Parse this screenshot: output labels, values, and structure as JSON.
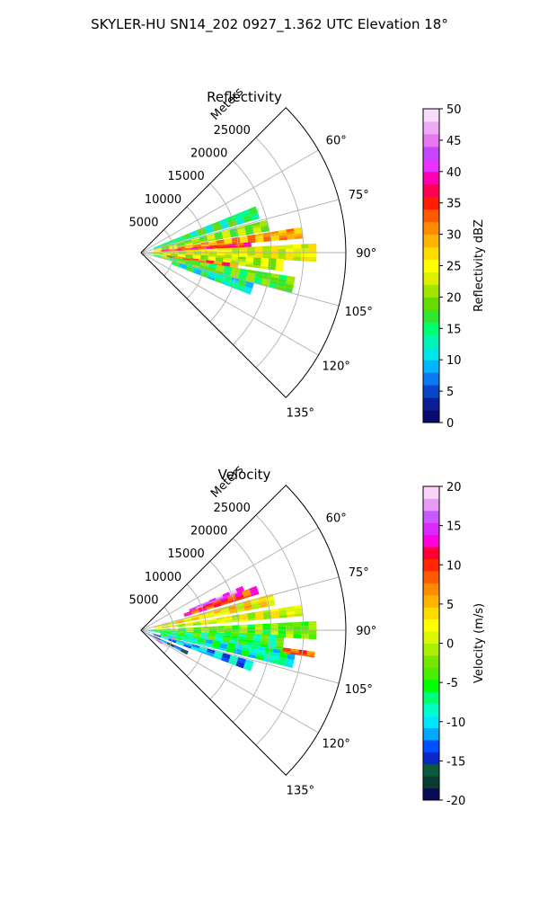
{
  "figure": {
    "suptitle": "SKYLER-HU  SN14_202  0927_1.362 UTC Elevation 18°"
  },
  "chart_data": [
    {
      "type": "heatmap",
      "projection": "polar-sector",
      "title": "Reflectivity",
      "radial_axis_label": "Meters",
      "radial_ticks": [
        "5000",
        "10000",
        "15000",
        "20000",
        "25000"
      ],
      "radial_tick_values": [
        5000,
        10000,
        15000,
        20000,
        25000
      ],
      "radial_max": 31500,
      "azimuth_range_deg": [
        45,
        135
      ],
      "azimuth_ticks": [
        "60°",
        "75°",
        "90°",
        "105°",
        "120°",
        "135°"
      ],
      "azimuth_tick_values": [
        60,
        75,
        90,
        105,
        120,
        135
      ],
      "grid": true,
      "colorbar": {
        "label": "Reflectivity dBZ",
        "min": 0,
        "max": 50,
        "ticks": [
          "0",
          "5",
          "10",
          "15",
          "20",
          "25",
          "30",
          "35",
          "40",
          "45",
          "50"
        ],
        "tick_values": [
          0,
          5,
          10,
          15,
          20,
          25,
          30,
          35,
          40,
          45,
          50
        ],
        "colors": [
          "#0a0a6e",
          "#0a1e96",
          "#0a46c8",
          "#0a78f0",
          "#00b4ff",
          "#00e6e6",
          "#00f5b4",
          "#00ff6e",
          "#32e632",
          "#64dc00",
          "#a0e600",
          "#dcf000",
          "#ffff00",
          "#ffdc00",
          "#ffb400",
          "#ff8c00",
          "#ff5a00",
          "#ff1e00",
          "#ff0050",
          "#ff00b4",
          "#e632ff",
          "#c846ff",
          "#e678f0",
          "#f0aaf5",
          "#fadcfa"
        ]
      },
      "echoes": [
        {
          "az": 71,
          "r0": 2000,
          "r1": 19000,
          "w": 6,
          "value": 15
        },
        {
          "az": 78,
          "r0": 2000,
          "r1": 20000,
          "w": 5,
          "value": 20
        },
        {
          "az": 83,
          "r0": 2000,
          "r1": 25000,
          "w": 4,
          "value": 30
        },
        {
          "az": 86,
          "r0": 3000,
          "r1": 17000,
          "w": 3,
          "value": 36
        },
        {
          "az": 90,
          "r0": 1000,
          "r1": 27000,
          "w": 6,
          "value": 24
        },
        {
          "az": 95,
          "r0": 1000,
          "r1": 22000,
          "w": 5,
          "value": 22
        },
        {
          "az": 98,
          "r0": 4000,
          "r1": 15000,
          "w": 3,
          "value": 33
        },
        {
          "az": 102,
          "r0": 2000,
          "r1": 24000,
          "w": 6,
          "value": 18
        },
        {
          "az": 108,
          "r0": 5000,
          "r1": 18000,
          "w": 6,
          "value": 13
        }
      ]
    },
    {
      "type": "heatmap",
      "projection": "polar-sector",
      "title": "Velocity",
      "radial_axis_label": "Meters",
      "radial_ticks": [
        "5000",
        "10000",
        "15000",
        "20000",
        "25000"
      ],
      "radial_tick_values": [
        5000,
        10000,
        15000,
        20000,
        25000
      ],
      "radial_max": 31500,
      "azimuth_range_deg": [
        45,
        135
      ],
      "azimuth_ticks": [
        "60°",
        "75°",
        "90°",
        "105°",
        "120°",
        "135°"
      ],
      "azimuth_tick_values": [
        60,
        75,
        90,
        105,
        120,
        135
      ],
      "grid": true,
      "colorbar": {
        "label": "Velocity (m/s)",
        "min": -20,
        "max": 20,
        "ticks": [
          "-20",
          "-15",
          "-10",
          "-5",
          "0",
          "5",
          "10",
          "15",
          "20"
        ],
        "tick_values": [
          -20,
          -15,
          -10,
          -5,
          0,
          5,
          10,
          15,
          20
        ],
        "colors": [
          "#0a0a5a",
          "#0a3c32",
          "#0a5a3c",
          "#0a28c8",
          "#0050ff",
          "#00aaff",
          "#00e6ff",
          "#00ffc8",
          "#00ff78",
          "#00ff00",
          "#46f000",
          "#78e600",
          "#aaf000",
          "#dcf500",
          "#ffff00",
          "#ffdc00",
          "#ffb400",
          "#ff8c00",
          "#ff5a00",
          "#ff2800",
          "#ff0032",
          "#ff00dc",
          "#dc28ff",
          "#c85aff",
          "#e69bf5",
          "#fad2fa"
        ]
      },
      "echoes": [
        {
          "az": 68,
          "r0": 8000,
          "r1": 17000,
          "w": 3,
          "value": 16
        },
        {
          "az": 71,
          "r0": 7000,
          "r1": 19000,
          "w": 4,
          "value": 10
        },
        {
          "az": 77,
          "r0": 2000,
          "r1": 21000,
          "w": 5,
          "value": 3
        },
        {
          "az": 83,
          "r0": 2000,
          "r1": 25000,
          "w": 4,
          "value": 1
        },
        {
          "az": 90,
          "r0": 1000,
          "r1": 27000,
          "w": 6,
          "value": -3
        },
        {
          "az": 95,
          "r0": 1000,
          "r1": 22000,
          "w": 6,
          "value": -6
        },
        {
          "az": 101,
          "r0": 3000,
          "r1": 24000,
          "w": 6,
          "value": -8
        },
        {
          "az": 108,
          "r0": 2000,
          "r1": 18000,
          "w": 5,
          "value": -11
        },
        {
          "az": 116,
          "r0": 1000,
          "r1": 8000,
          "w": 4,
          "value": -15
        },
        {
          "az": 122,
          "r0": 500,
          "r1": 5000,
          "w": 4,
          "value": 17
        },
        {
          "az": 98,
          "r0": 22000,
          "r1": 27000,
          "w": 2,
          "value": 9
        }
      ]
    }
  ]
}
